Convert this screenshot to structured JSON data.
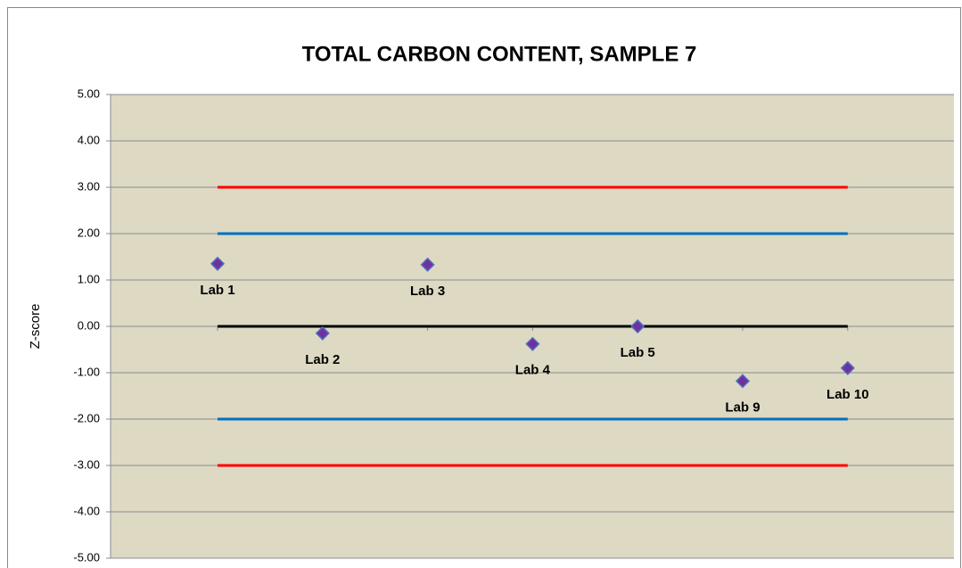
{
  "chart_data": {
    "type": "scatter",
    "title": "TOTAL CARBON CONTENT, SAMPLE 7",
    "y_label": "Z-score",
    "categories": [
      "Lab 1",
      "Lab 2",
      "Lab 3",
      "Lab 4",
      "Lab 5",
      "Lab 9",
      "Lab 10"
    ],
    "values": [
      1.35,
      -0.15,
      1.33,
      -0.38,
      0.0,
      -1.18,
      -0.9
    ],
    "color": "#7030a0",
    "edge_color": "#4f6fbd",
    "background": "#ddd9c3",
    "grid": true,
    "ylim": [
      -5,
      5
    ],
    "yticks": [
      {
        "value": 5,
        "label": "5.00"
      },
      {
        "value": 4,
        "label": "4.00"
      },
      {
        "value": 3,
        "label": "3.00"
      },
      {
        "value": 2,
        "label": "2.00"
      },
      {
        "value": 1,
        "label": "1.00"
      },
      {
        "value": 0,
        "label": "0.00"
      },
      {
        "value": -1,
        "label": "-1.00"
      },
      {
        "value": -2,
        "label": "-2.00"
      },
      {
        "value": -3,
        "label": "-3.00"
      },
      {
        "value": -4,
        "label": "-4.00"
      },
      {
        "value": -5,
        "label": "-5.00"
      }
    ],
    "reference_lines": [
      {
        "value": 3,
        "color": "#ff0000"
      },
      {
        "value": 2,
        "color": "#0070c0"
      },
      {
        "value": 0,
        "color": "#000000"
      },
      {
        "value": -2,
        "color": "#0070c0"
      },
      {
        "value": -3,
        "color": "#ff0000"
      }
    ]
  }
}
